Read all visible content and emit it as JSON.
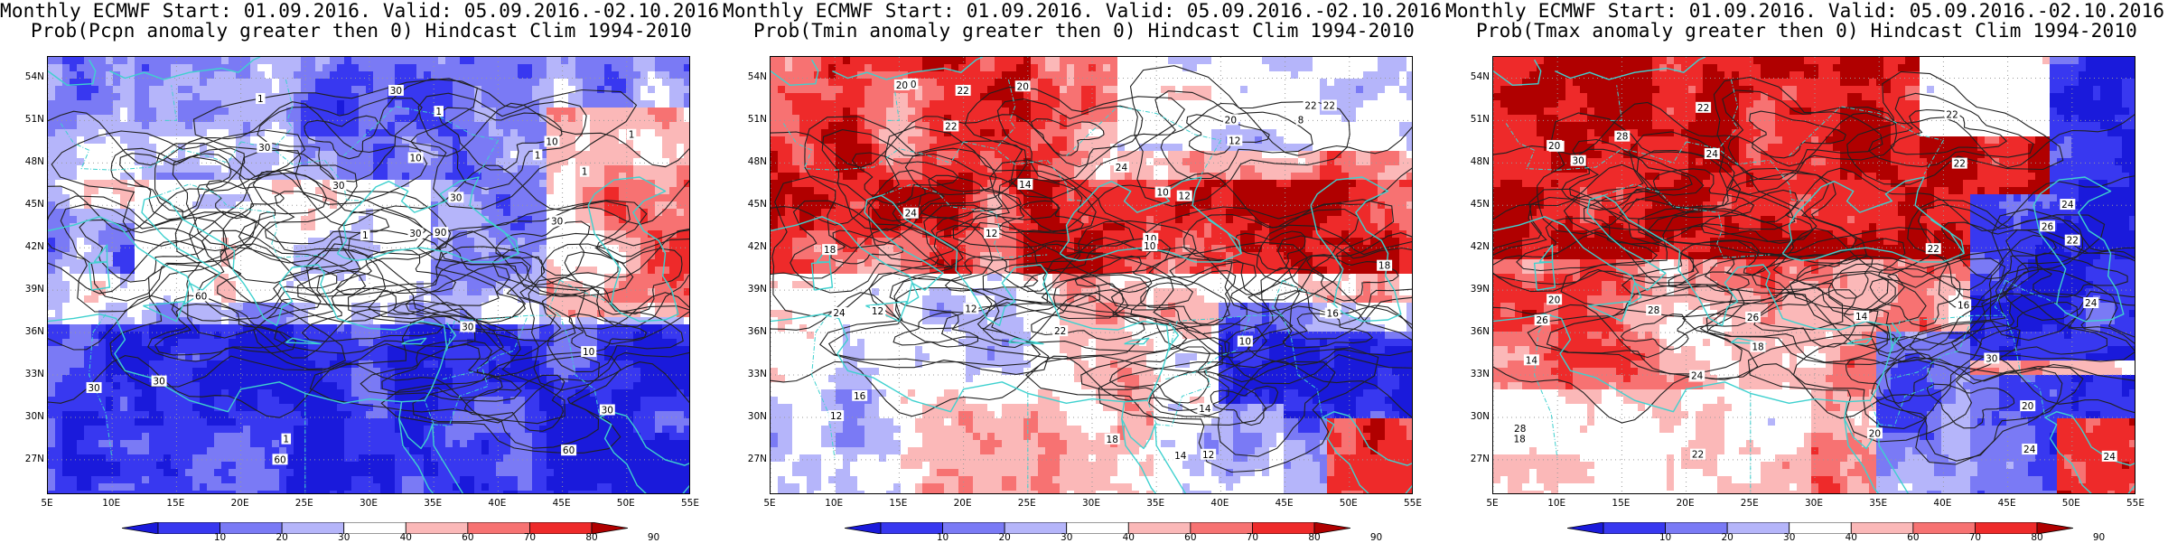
{
  "panels": [
    {
      "title_line1": "Monthly ECMWF Start: 01.09.2016. Valid: 05.09.2016.-02.10.2016.",
      "title_line2": "Prob(Pcpn anomaly greater then 0) Hindcast Clim 1994-2010",
      "field": "precipitation",
      "contour_labels": [
        "30",
        "30",
        "30",
        "30",
        "30",
        "60",
        "90",
        "60",
        "60",
        "30",
        "30",
        "30",
        "30",
        "30",
        "10",
        "10",
        "10",
        "1",
        "1",
        "1",
        "1",
        "1",
        "1",
        "1"
      ]
    },
    {
      "title_line1": "Monthly ECMWF Start: 01.09.2016. Valid: 05.09.2016.-02.10.2016.",
      "title_line2": "Prob(Tmin anomaly greater then 0) Hindcast Clim 1994-2010",
      "field": "tmin",
      "contour_labels": [
        "12",
        "12",
        "10",
        "10",
        "10",
        "12",
        "14",
        "12",
        "14",
        "16",
        "12",
        "8",
        "14",
        "12",
        "12",
        "10",
        "18",
        "22",
        "20",
        "20",
        "24",
        "22",
        "24",
        "22",
        "20",
        "18",
        "16",
        "22",
        "24",
        "20",
        "22",
        "18"
      ]
    },
    {
      "title_line1": "Monthly ECMWF Start: 01.09.2016. Valid: 05.09.2016.-02.10.2016.",
      "title_line2": "Prob(Tmax anomaly greater then 0) Hindcast Clim 1994-2010",
      "field": "tmax",
      "contour_labels": [
        "20",
        "18",
        "18",
        "16",
        "22",
        "20",
        "22",
        "18",
        "14",
        "14",
        "22",
        "24",
        "28",
        "24",
        "22",
        "26",
        "20",
        "22",
        "24",
        "28",
        "24",
        "22",
        "24",
        "30",
        "26",
        "30",
        "28",
        "20",
        "24",
        "26"
      ]
    }
  ],
  "axes": {
    "lat_labels": [
      "54N",
      "51N",
      "48N",
      "45N",
      "42N",
      "39N",
      "36N",
      "33N",
      "30N",
      "27N"
    ],
    "lon_labels": [
      "5E",
      "10E",
      "15E",
      "20E",
      "25E",
      "30E",
      "35E",
      "40E",
      "45E",
      "50E",
      "55E"
    ],
    "lon_range": [
      5,
      55
    ],
    "lat_range": [
      24.5,
      55.5
    ]
  },
  "colorbar": {
    "labels": [
      "10",
      "20",
      "30",
      "40",
      "60",
      "70",
      "80",
      "90"
    ],
    "colors": [
      "#1a1adb",
      "#3838f0",
      "#7a7af5",
      "#b5b5fa",
      "#ffffff",
      "#fbb8b8",
      "#f77272",
      "#ee2a2a",
      "#b00000"
    ]
  },
  "colors": {
    "coastline": "#3fd1cf",
    "contour": "#202020",
    "grid": "#9a9a9a"
  }
}
